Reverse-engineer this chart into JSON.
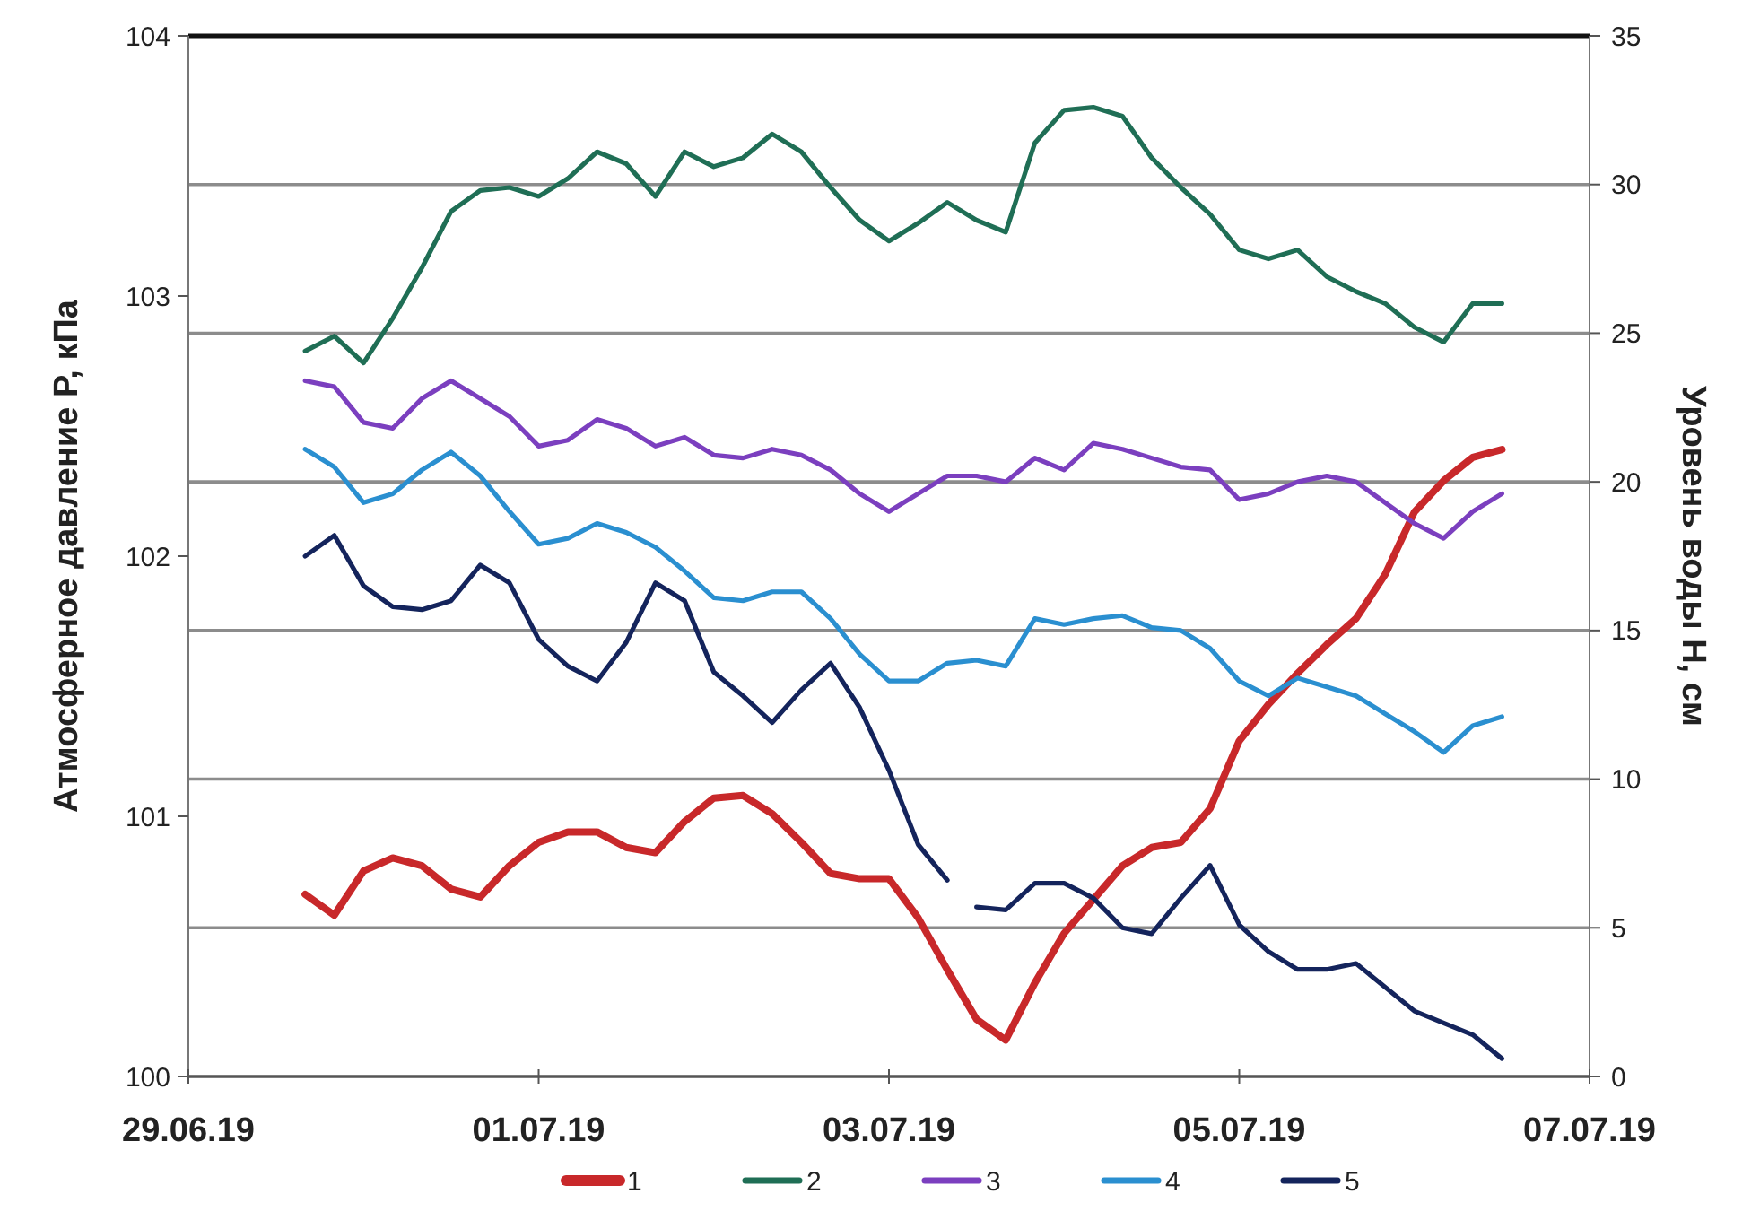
{
  "chart_data": {
    "type": "line",
    "ylabel": "Атмосферное давление P, кПа",
    "y2label": "Уровень воды H, см",
    "x": [
      "--06-29T16:00",
      "--06-29T20:00",
      "--06-30T00:00",
      "--06-30T04:00",
      "--06-30T08:00",
      "--06-30T12:00",
      "--06-30T16:00",
      "--06-30T20:00",
      "--07-01T00:00",
      "--07-01T04:00",
      "--07-01T08:00",
      "--07-01T12:00",
      "--07-01T16:00",
      "--07-01T20:00",
      "--07-02T00:00",
      "--07-02T04:00",
      "--07-02T08:00",
      "--07-02T12:00",
      "--07-02T16:00",
      "--07-02T20:00",
      "--07-03T00:00",
      "--07-03T04:00",
      "--07-03T08:00",
      "--07-03T12:00",
      "--07-03T16:00",
      "--07-03T20:00",
      "--07-04T00:00",
      "--07-04T04:00",
      "--07-04T08:00",
      "--07-04T12:00",
      "--07-04T16:00",
      "--07-04T20:00",
      "--07-05T00:00",
      "--07-05T04:00",
      "--07-05T08:00",
      "--07-05T12:00",
      "--07-05T16:00",
      "--07-05T20:00",
      "--07-06T00:00",
      "--07-06T04:00",
      "--07-06T08:00",
      "--07-06T12:00"
    ],
    "series": [
      {
        "name": "1",
        "color": "#c8282a",
        "values": [
          100.7,
          100.62,
          100.79,
          100.84,
          100.81,
          100.72,
          100.69,
          100.81,
          100.9,
          100.94,
          100.94,
          100.88,
          100.86,
          100.98,
          101.07,
          101.08,
          101.01,
          100.9,
          100.78,
          100.76,
          100.76,
          100.61,
          100.41,
          100.22,
          100.14,
          100.36,
          100.55,
          100.68,
          100.81,
          100.88,
          100.9,
          101.03,
          101.29,
          101.43,
          101.55,
          101.66,
          101.76,
          101.93,
          102.17,
          102.29,
          102.38,
          102.41
        ]
      },
      {
        "name": "2",
        "color": "#1f6e55",
        "axis": "y2",
        "values": [
          24.4,
          24.9,
          24.0,
          25.5,
          27.2,
          29.1,
          29.8,
          29.9,
          29.6,
          30.2,
          31.1,
          30.7,
          29.6,
          31.1,
          30.6,
          30.9,
          31.7,
          31.1,
          29.9,
          28.8,
          28.1,
          28.7,
          29.4,
          28.8,
          28.4,
          31.4,
          32.5,
          32.6,
          32.3,
          30.9,
          29.9,
          29.0,
          27.8,
          27.5,
          27.8,
          26.9,
          26.4,
          26.0,
          25.2,
          24.7,
          26.0,
          26.0
        ]
      },
      {
        "name": "3",
        "color": "#7b3fbf",
        "axis": "y2",
        "values": [
          23.4,
          23.2,
          22.0,
          21.8,
          22.8,
          23.4,
          22.8,
          22.2,
          21.2,
          21.4,
          22.1,
          21.8,
          21.2,
          21.5,
          20.9,
          20.8,
          21.1,
          20.9,
          20.4,
          19.6,
          19.0,
          19.6,
          20.2,
          20.2,
          20.0,
          20.8,
          20.4,
          21.3,
          21.1,
          20.8,
          20.5,
          20.4,
          19.4,
          19.6,
          20.0,
          20.2,
          20.0,
          19.3,
          18.6,
          18.1,
          19.0,
          19.6
        ]
      },
      {
        "name": "4",
        "color": "#2a8fd0",
        "axis": "y2",
        "values": [
          21.1,
          20.5,
          19.3,
          19.6,
          20.4,
          21.0,
          20.2,
          19.0,
          17.9,
          18.1,
          18.6,
          18.3,
          17.8,
          17.0,
          16.1,
          16.0,
          16.3,
          16.3,
          15.4,
          14.2,
          13.3,
          13.3,
          13.9,
          14.0,
          13.8,
          15.4,
          15.2,
          15.4,
          15.5,
          15.1,
          15.0,
          14.4,
          13.3,
          12.8,
          13.4,
          13.1,
          12.8,
          12.2,
          11.6,
          10.9,
          11.8,
          12.1
        ]
      },
      {
        "name": "5",
        "color": "#14245c",
        "axis": "y2",
        "x": [
          "--06-29T16:00",
          "--06-29T20:00",
          "--06-30T00:00",
          "--06-30T04:00",
          "--06-30T08:00",
          "--06-30T12:00",
          "--06-30T16:00",
          "--06-30T20:00",
          "--07-01T00:00",
          "--07-01T04:00",
          "--07-01T08:00",
          "--07-01T12:00",
          "--07-01T16:00",
          "--07-01T20:00",
          "--07-02T00:00",
          "--07-02T04:00",
          "--07-02T08:00",
          "--07-02T12:00",
          "--07-02T16:00",
          "--07-02T20:00",
          "--07-03T00:00",
          "--07-03T04:00",
          "--07-03T08:00",
          "--07-03T10:00",
          "--07-03T12:00",
          "--07-03T16:00",
          "--07-03T20:00",
          "--07-04T00:00",
          "--07-04T04:00",
          "--07-04T08:00",
          "--07-04T12:00",
          "--07-04T16:00",
          "--07-04T20:00",
          "--07-05T00:00",
          "--07-05T04:00",
          "--07-05T08:00",
          "--07-05T12:00",
          "--07-05T16:00",
          "--07-05T20:00",
          "--07-06T00:00",
          "--07-06T04:00",
          "--07-06T08:00",
          "--07-06T12:00"
        ],
        "values": [
          17.5,
          18.2,
          16.5,
          15.8,
          15.7,
          16.0,
          17.2,
          16.6,
          14.7,
          13.8,
          13.3,
          14.6,
          16.6,
          16.0,
          13.6,
          12.8,
          11.9,
          13.0,
          13.9,
          12.4,
          10.3,
          7.8,
          6.6,
          null,
          5.7,
          5.6,
          6.5,
          6.5,
          6.0,
          5.0,
          4.8,
          6.0,
          7.1,
          5.1,
          4.2,
          3.6,
          3.6,
          3.8,
          3.0,
          2.2,
          1.8,
          1.4,
          0.6
        ]
      }
    ],
    "xlim": [
      "--06-29",
      "--07-07"
    ],
    "xticks": [
      {
        "value": "--06-29",
        "label": "29.06.19"
      },
      {
        "value": "--07-01",
        "label": "01.07.19"
      },
      {
        "value": "--07-03",
        "label": "03.07.19"
      },
      {
        "value": "--07-05",
        "label": "05.07.19"
      },
      {
        "value": "--07-07",
        "label": "07.07.19"
      }
    ],
    "ylim": [
      100,
      104
    ],
    "yticks": [
      100,
      101,
      102,
      103,
      104
    ],
    "y2lim": [
      0,
      35
    ],
    "y2ticks": [
      0,
      5,
      10,
      15,
      20,
      25,
      30,
      35
    ],
    "grid": "y",
    "legend": "bottom"
  }
}
